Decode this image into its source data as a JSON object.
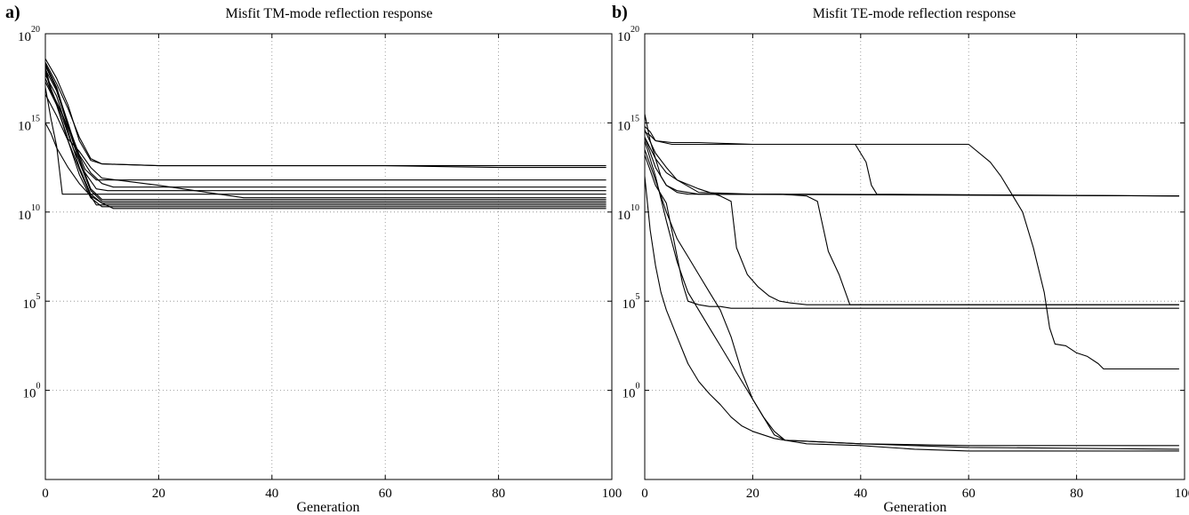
{
  "chart_data": [
    {
      "panel_label": "a)",
      "type": "line",
      "title": "Misfit TM-mode reflection response",
      "xlabel": "Generation",
      "ylabel": "",
      "xlim": [
        0,
        100
      ],
      "ylim_log10": [
        -5,
        20
      ],
      "yscale": "log",
      "grid": true,
      "xticks": [
        "0",
        "20",
        "40",
        "60",
        "80",
        "100"
      ],
      "yticks": [
        {
          "base": "10",
          "exp": "0"
        },
        {
          "base": "10",
          "exp": "5"
        },
        {
          "base": "10",
          "exp": "10"
        },
        {
          "base": "10",
          "exp": "15"
        },
        {
          "base": "10",
          "exp": "20"
        }
      ],
      "series_log10": [
        {
          "x": [
            0,
            2,
            4,
            6,
            8,
            10,
            20,
            40,
            60,
            80,
            99
          ],
          "y": [
            18.4,
            17.2,
            15.8,
            14.2,
            13.0,
            12.7,
            12.6,
            12.6,
            12.6,
            12.6,
            12.6
          ]
        },
        {
          "x": [
            0,
            2,
            4,
            6,
            8,
            10,
            20,
            40,
            60,
            80,
            99
          ],
          "y": [
            18.6,
            17.5,
            16.0,
            14.0,
            12.9,
            12.7,
            12.6,
            12.6,
            12.6,
            12.5,
            12.5
          ]
        },
        {
          "x": [
            0,
            1,
            3,
            5,
            7,
            9,
            99
          ],
          "y": [
            17.9,
            16.8,
            15.5,
            13.9,
            12.4,
            11.8,
            11.8
          ]
        },
        {
          "x": [
            0,
            2,
            4,
            6,
            8,
            10,
            12,
            99
          ],
          "y": [
            18.3,
            17.0,
            14.9,
            13.2,
            12.2,
            11.6,
            11.4,
            11.4
          ]
        },
        {
          "x": [
            0,
            1,
            3,
            5,
            7,
            9,
            11,
            99
          ],
          "y": [
            18.1,
            16.9,
            15.3,
            13.5,
            12.2,
            11.3,
            11.2,
            11.2
          ]
        },
        {
          "x": [
            0,
            2,
            4,
            6,
            8,
            10,
            15,
            20,
            35,
            99
          ],
          "y": [
            17.5,
            16.0,
            14.1,
            13.4,
            12.5,
            11.9,
            11.7,
            11.5,
            10.8,
            10.8
          ]
        },
        {
          "x": [
            0,
            1,
            2,
            3,
            99
          ],
          "y": [
            17.0,
            15.2,
            13.7,
            11.0,
            11.0
          ]
        },
        {
          "x": [
            0,
            2,
            4,
            6,
            8,
            10,
            99
          ],
          "y": [
            18.2,
            16.9,
            15.0,
            13.0,
            11.3,
            10.7,
            10.7
          ]
        },
        {
          "x": [
            0,
            2,
            4,
            6,
            8,
            10,
            99
          ],
          "y": [
            18.0,
            16.8,
            14.8,
            12.8,
            11.2,
            10.6,
            10.6
          ]
        },
        {
          "x": [
            0,
            2,
            4,
            6,
            8,
            10,
            99
          ],
          "y": [
            17.7,
            16.5,
            14.5,
            12.5,
            11.0,
            10.5,
            10.5
          ]
        },
        {
          "x": [
            0,
            2,
            4,
            6,
            8,
            9,
            99
          ],
          "y": [
            16.6,
            15.4,
            14.0,
            12.4,
            10.9,
            10.4,
            10.4
          ]
        },
        {
          "x": [
            0,
            2,
            4,
            6,
            8,
            10,
            99
          ],
          "y": [
            17.3,
            16.0,
            14.0,
            12.1,
            10.8,
            10.3,
            10.3
          ]
        },
        {
          "x": [
            0,
            1,
            2,
            4,
            6,
            8,
            10,
            12,
            99
          ],
          "y": [
            15.0,
            14.4,
            13.6,
            12.5,
            11.6,
            10.9,
            10.5,
            10.2,
            10.2
          ]
        }
      ]
    },
    {
      "panel_label": "b)",
      "type": "line",
      "title": "Misfit TE-mode reflection response",
      "xlabel": "Generation",
      "ylabel": "",
      "xlim": [
        0,
        100
      ],
      "ylim_log10": [
        -5,
        20
      ],
      "yscale": "log",
      "grid": true,
      "xticks": [
        "0",
        "20",
        "40",
        "60",
        "80",
        "100"
      ],
      "yticks": [
        {
          "base": "10",
          "exp": "0"
        },
        {
          "base": "10",
          "exp": "5"
        },
        {
          "base": "10",
          "exp": "10"
        },
        {
          "base": "10",
          "exp": "15"
        },
        {
          "base": "10",
          "exp": "20"
        }
      ],
      "series_log10": [
        {
          "x": [
            0,
            1,
            2,
            5,
            10,
            30,
            60,
            64,
            66,
            68,
            70,
            72,
            74,
            75,
            76,
            78,
            80,
            82,
            84,
            85,
            99
          ],
          "y": [
            14.8,
            14.5,
            14.0,
            13.8,
            13.8,
            13.8,
            13.8,
            12.8,
            12.0,
            11.0,
            10.0,
            8.0,
            5.5,
            3.5,
            2.6,
            2.5,
            2.1,
            1.9,
            1.5,
            1.2,
            1.2
          ]
        },
        {
          "x": [
            0,
            1,
            2,
            5,
            10,
            20,
            30,
            39,
            41,
            42,
            43,
            99
          ],
          "y": [
            14.5,
            14.3,
            14.0,
            13.9,
            13.9,
            13.8,
            13.8,
            13.8,
            12.8,
            11.5,
            11.0,
            10.9
          ]
        },
        {
          "x": [
            0,
            1,
            2,
            3,
            4,
            6,
            8,
            99
          ],
          "y": [
            15.5,
            14.0,
            13.0,
            12.0,
            11.5,
            11.1,
            11.0,
            10.9
          ]
        },
        {
          "x": [
            0,
            2,
            4,
            6,
            8,
            10,
            20,
            30,
            99
          ],
          "y": [
            14.2,
            12.5,
            11.5,
            11.2,
            11.1,
            11.0,
            11.0,
            11.0,
            10.9
          ]
        },
        {
          "x": [
            0,
            2,
            4,
            6,
            10,
            20,
            25,
            30,
            32,
            34,
            36,
            38,
            99
          ],
          "y": [
            14.2,
            13.0,
            12.2,
            11.8,
            11.1,
            11.0,
            11.0,
            10.9,
            10.6,
            7.8,
            6.5,
            4.8,
            4.8
          ]
        },
        {
          "x": [
            0,
            2,
            4,
            6,
            10,
            12,
            14,
            16,
            17,
            19,
            21,
            23,
            25,
            27,
            30,
            99
          ],
          "y": [
            14.6,
            13.3,
            12.5,
            11.8,
            11.3,
            11.1,
            10.9,
            10.6,
            8.0,
            6.5,
            5.8,
            5.3,
            5.0,
            4.9,
            4.8,
            4.8
          ]
        },
        {
          "x": [
            0,
            2,
            4,
            5,
            6,
            7,
            8,
            10,
            12,
            14,
            16,
            99
          ],
          "y": [
            13.2,
            11.5,
            10.5,
            9.0,
            7.5,
            6.0,
            5.0,
            4.8,
            4.7,
            4.7,
            4.6,
            4.6
          ]
        },
        {
          "x": [
            0,
            2,
            4,
            6,
            8,
            10,
            12,
            14,
            16,
            18,
            20,
            22,
            24,
            26,
            30,
            40,
            50,
            60,
            99
          ],
          "y": [
            13.5,
            11.8,
            10.0,
            8.5,
            7.5,
            6.5,
            5.5,
            4.5,
            3.0,
            1.0,
            -0.5,
            -1.5,
            -2.3,
            -2.8,
            -3.0,
            -3.1,
            -3.3,
            -3.4,
            -3.4
          ]
        },
        {
          "x": [
            0,
            1,
            2,
            3,
            4,
            6,
            8,
            10,
            12,
            14,
            16,
            18,
            20,
            22,
            24,
            26,
            40,
            60,
            99
          ],
          "y": [
            12.0,
            9.0,
            7.0,
            5.5,
            4.5,
            3.0,
            1.5,
            0.5,
            -0.2,
            -0.8,
            -1.5,
            -2.0,
            -2.3,
            -2.5,
            -2.7,
            -2.8,
            -3.0,
            -3.2,
            -3.3
          ]
        },
        {
          "x": [
            0,
            2,
            4,
            6,
            8,
            10,
            12,
            14,
            16,
            18,
            20,
            22,
            24,
            26,
            40,
            60,
            70,
            99
          ],
          "y": [
            14.0,
            12.0,
            9.5,
            7.2,
            5.5,
            4.5,
            3.5,
            2.5,
            1.5,
            0.5,
            -0.5,
            -1.5,
            -2.5,
            -2.8,
            -3.0,
            -3.1,
            -3.1,
            -3.1
          ]
        }
      ]
    }
  ]
}
